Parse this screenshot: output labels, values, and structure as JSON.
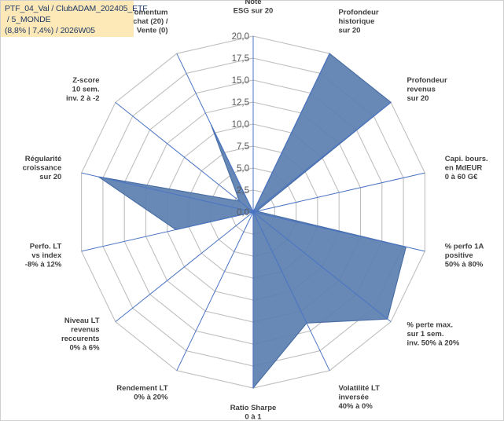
{
  "title_block": {
    "line1": "PTF_04_Val / ClubADAM_202405_ETF",
    "line2": " / 5_MONDE",
    "line3": "(8,8% | 7,4%) / 2026W05"
  },
  "chart_data": {
    "type": "radar",
    "title": "PTF_04_Val / ClubADAM_202405_ETF / 5_MONDE (8,8% | 7,4%) / 2026W05",
    "rmin": 0,
    "rmax": 20,
    "tick_step": 2.5,
    "tick_labels": [
      "0,0",
      "2,5",
      "5,0",
      "7,5",
      "10,0",
      "12,5",
      "15,0",
      "17,5",
      "20,0"
    ],
    "grid": true,
    "legend": "none",
    "categories": [
      [
        "Note",
        "ESG sur 20"
      ],
      [
        "Profondeur",
        "historique",
        "sur 20"
      ],
      [
        "Profondeur",
        "revenus",
        "sur 20"
      ],
      [
        "Capi. bours.",
        "en MdEUR",
        "0 à 60 G€"
      ],
      [
        "% perfo 1A",
        "positive",
        "50% à 80%"
      ],
      [
        "% perte max.",
        "sur 1 sem.",
        "inv. 50% à 20%"
      ],
      [
        "Volatilité LT",
        "inversée",
        "40% à 0%"
      ],
      [
        "Ratio Sharpe",
        "0 à 1"
      ],
      [
        "Rendement LT",
        "0% à 20%"
      ],
      [
        "Niveau LT",
        "revenus",
        "reccurents",
        "0% à 6%"
      ],
      [
        "Perfo. LT",
        "vs index",
        "-8% à 12%"
      ],
      [
        "Régularité",
        "croissance",
        "sur 20"
      ],
      [
        "Z-score",
        "10 sem.",
        "inv. 2 à -2"
      ],
      [
        "Momentum",
        "Achat (20) /",
        "Vente (0)"
      ]
    ],
    "series": [
      {
        "values": [
          0,
          20,
          20,
          0.4,
          17.8,
          19.5,
          14,
          20,
          0,
          0,
          9,
          18,
          2,
          11
        ]
      }
    ],
    "colors": {
      "fill": "#5b7fb0",
      "stroke": "#4a6fa5",
      "grid": "#bfbfbf",
      "spoke": "#4a74c4"
    }
  }
}
